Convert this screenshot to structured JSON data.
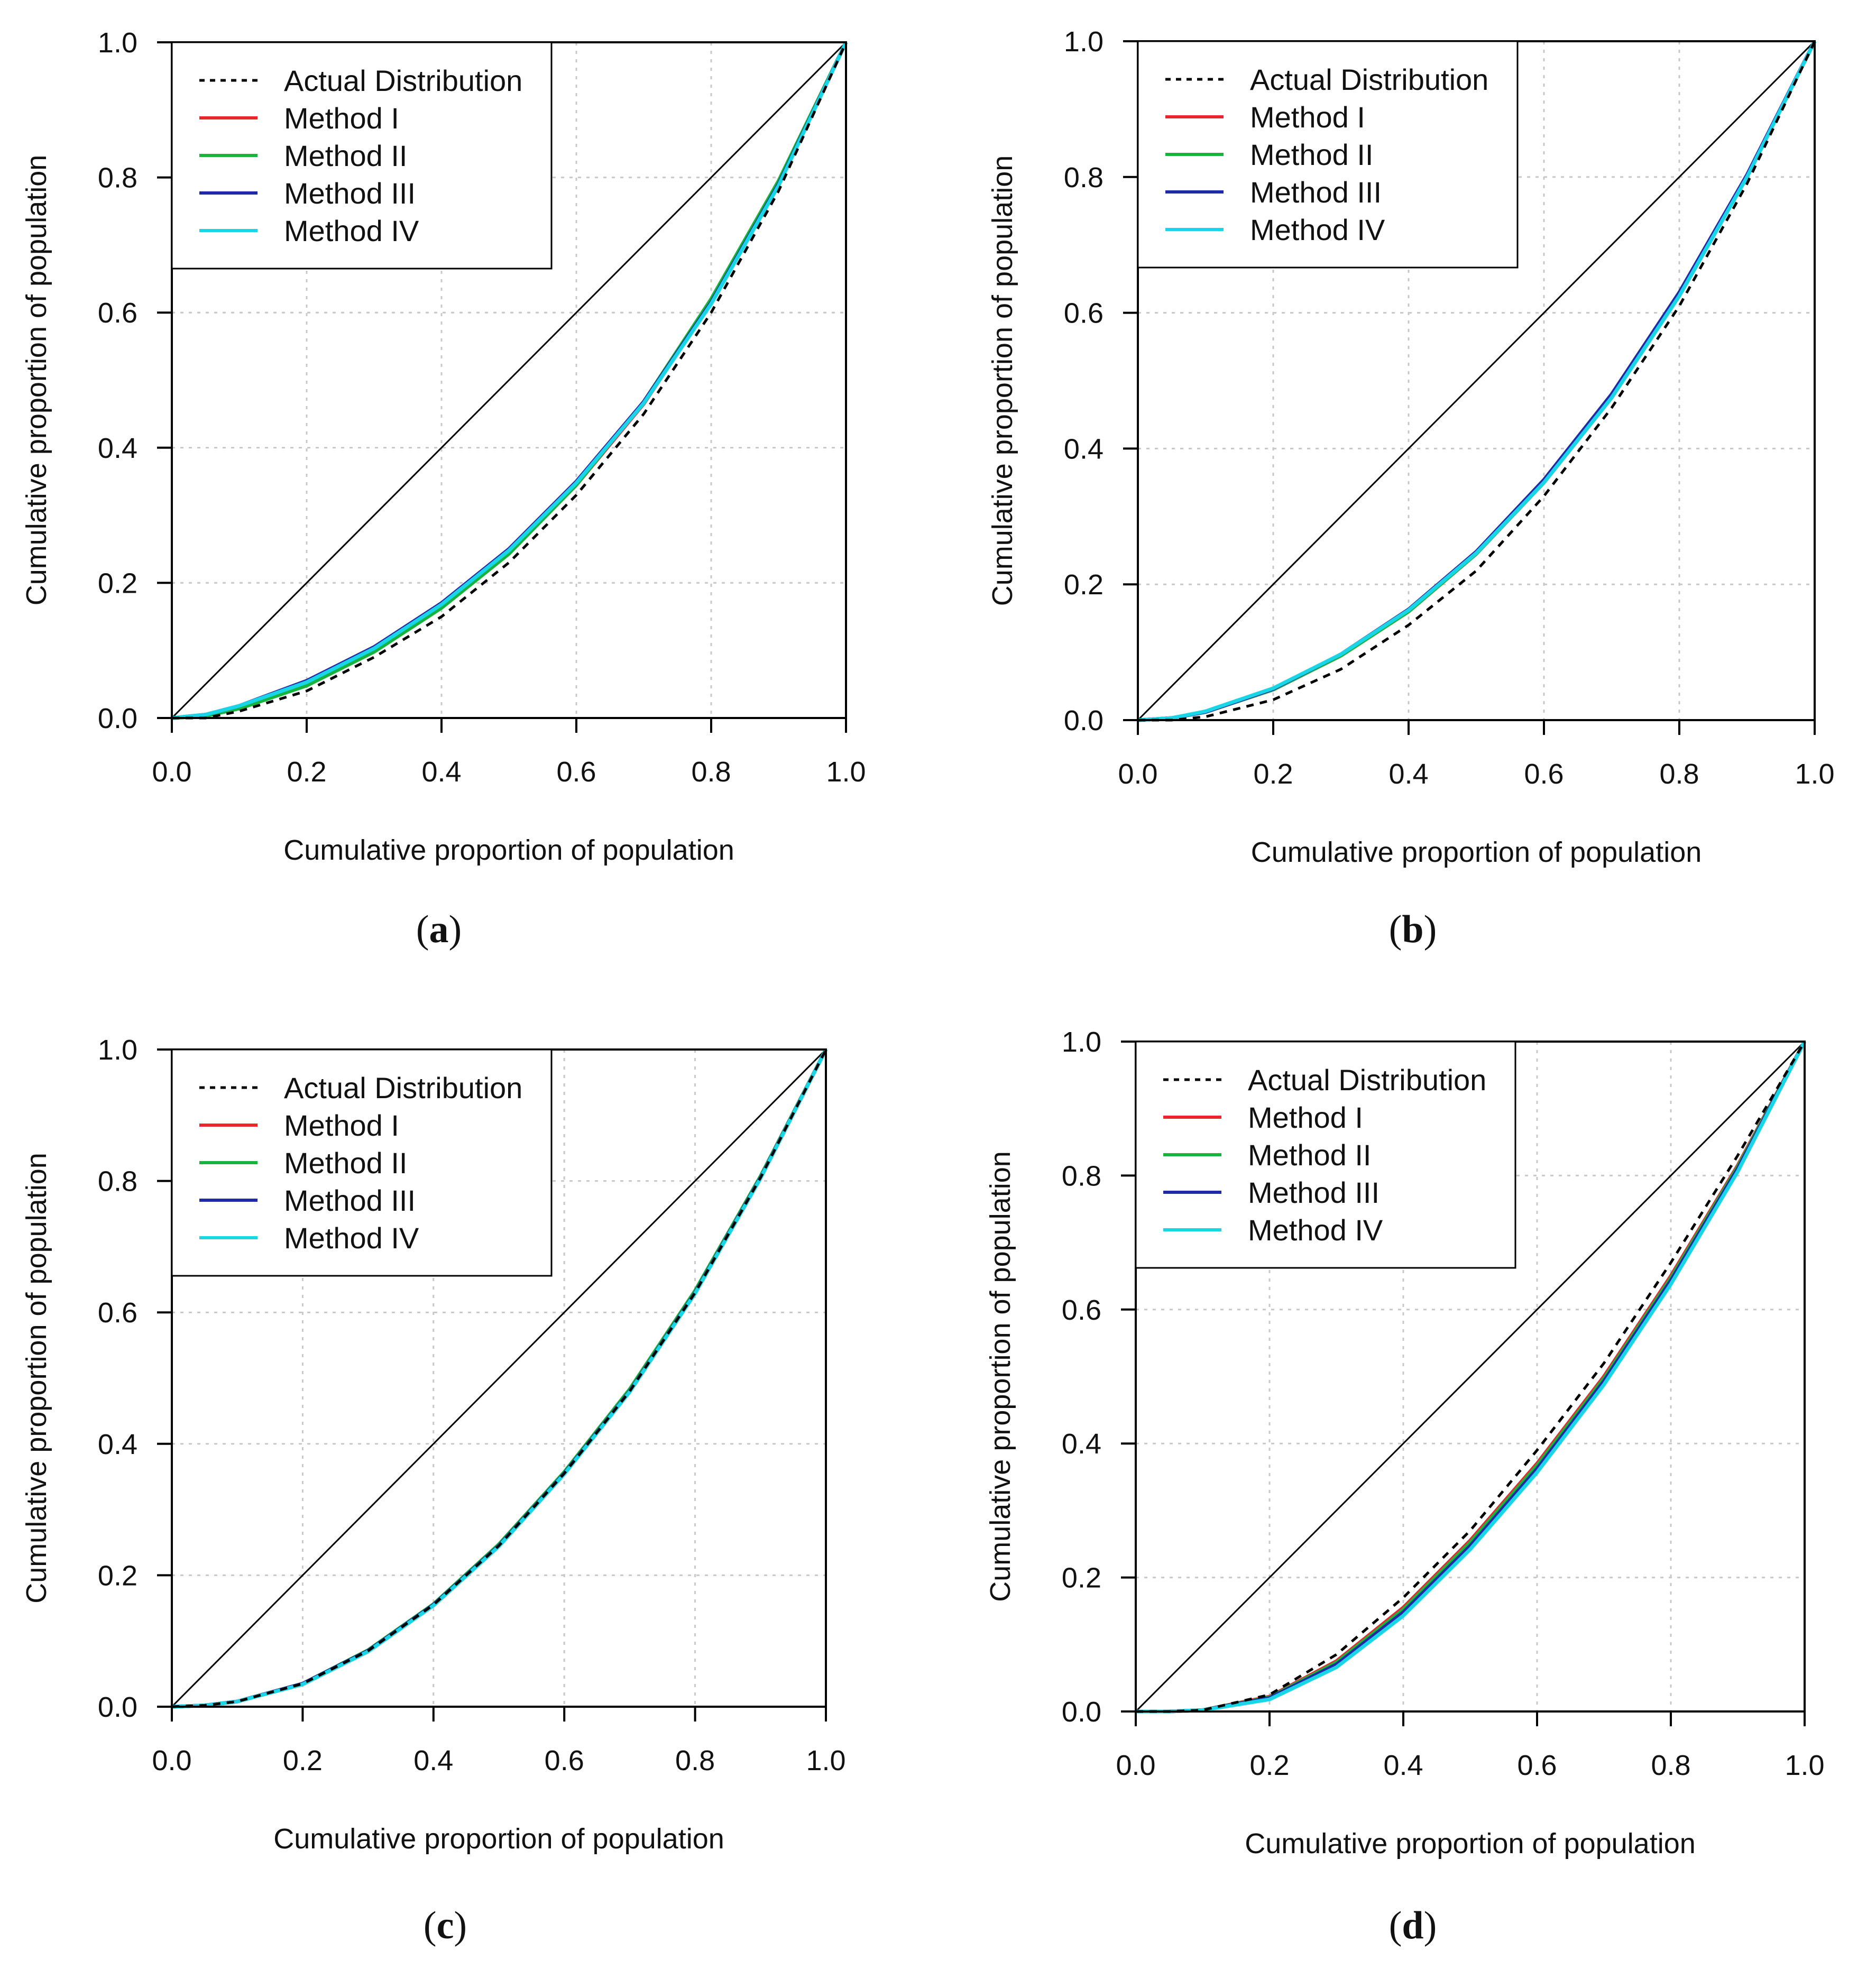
{
  "figure": {
    "panels": [
      "a",
      "b",
      "c",
      "d"
    ]
  },
  "chart_data": [
    {
      "panel": "a",
      "caption": "(a)",
      "type": "line",
      "xlabel": "Cumulative proportion of population",
      "ylabel": "Cumulative proportion of population",
      "xlim": [
        0,
        1
      ],
      "ylim": [
        0,
        1
      ],
      "xticks": [
        "0.0",
        "0.2",
        "0.4",
        "0.6",
        "0.8",
        "1.0"
      ],
      "yticks": [
        "0.0",
        "0.2",
        "0.4",
        "0.6",
        "0.8",
        "1.0"
      ],
      "grid": true,
      "legend_position": "top-left",
      "equality_line": {
        "x": [
          0,
          1
        ],
        "y": [
          0,
          1
        ],
        "color": "#000000"
      },
      "series": [
        {
          "name": "Actual Distribution",
          "style": "dashed",
          "color": "#000000",
          "x": [
            0,
            0.05,
            0.1,
            0.2,
            0.3,
            0.4,
            0.5,
            0.6,
            0.7,
            0.8,
            0.9,
            1.0
          ],
          "y": [
            0,
            0,
            0.01,
            0.04,
            0.09,
            0.15,
            0.23,
            0.33,
            0.45,
            0.6,
            0.78,
            1.0
          ]
        },
        {
          "name": "Method I",
          "style": "solid",
          "color": "#e8262b",
          "x": [
            0,
            0.05,
            0.1,
            0.2,
            0.3,
            0.4,
            0.5,
            0.6,
            0.7,
            0.8,
            0.9,
            1.0
          ],
          "y": [
            0,
            0.003,
            0.015,
            0.05,
            0.1,
            0.165,
            0.245,
            0.345,
            0.465,
            0.615,
            0.79,
            1.0
          ]
        },
        {
          "name": "Method II",
          "style": "solid",
          "color": "#17b33d",
          "x": [
            0,
            0.05,
            0.1,
            0.2,
            0.3,
            0.4,
            0.5,
            0.6,
            0.7,
            0.8,
            0.9,
            1.0
          ],
          "y": [
            0,
            0.003,
            0.014,
            0.048,
            0.098,
            0.163,
            0.243,
            0.345,
            0.468,
            0.62,
            0.795,
            1.0
          ]
        },
        {
          "name": "Method III",
          "style": "solid",
          "color": "#1f2aa6",
          "x": [
            0,
            0.05,
            0.1,
            0.2,
            0.3,
            0.4,
            0.5,
            0.6,
            0.7,
            0.8,
            0.9,
            1.0
          ],
          "y": [
            0,
            0.005,
            0.018,
            0.055,
            0.105,
            0.17,
            0.25,
            0.35,
            0.468,
            0.615,
            0.79,
            1.0
          ]
        },
        {
          "name": "Method IV",
          "style": "solid",
          "color": "#19d6e6",
          "x": [
            0,
            0.05,
            0.1,
            0.2,
            0.3,
            0.4,
            0.5,
            0.6,
            0.7,
            0.8,
            0.9,
            1.0
          ],
          "y": [
            0,
            0.005,
            0.018,
            0.053,
            0.103,
            0.168,
            0.248,
            0.348,
            0.466,
            0.613,
            0.788,
            1.0
          ]
        }
      ]
    },
    {
      "panel": "b",
      "caption": "(b)",
      "type": "line",
      "xlabel": "Cumulative proportion of population",
      "ylabel": "Cumulative proportion of population",
      "xlim": [
        0,
        1
      ],
      "ylim": [
        0,
        1
      ],
      "xticks": [
        "0.0",
        "0.2",
        "0.4",
        "0.6",
        "0.8",
        "1.0"
      ],
      "yticks": [
        "0.0",
        "0.2",
        "0.4",
        "0.6",
        "0.8",
        "1.0"
      ],
      "grid": true,
      "legend_position": "top-left",
      "equality_line": {
        "x": [
          0,
          1
        ],
        "y": [
          0,
          1
        ],
        "color": "#000000"
      },
      "series": [
        {
          "name": "Actual Distribution",
          "style": "dashed",
          "color": "#000000",
          "x": [
            0,
            0.05,
            0.1,
            0.2,
            0.3,
            0.4,
            0.5,
            0.6,
            0.7,
            0.8,
            0.9,
            1.0
          ],
          "y": [
            0,
            0,
            0.005,
            0.03,
            0.075,
            0.14,
            0.22,
            0.33,
            0.46,
            0.61,
            0.79,
            1.0
          ]
        },
        {
          "name": "Method I",
          "style": "solid",
          "color": "#e8262b",
          "x": [
            0,
            0.05,
            0.1,
            0.2,
            0.3,
            0.4,
            0.5,
            0.6,
            0.7,
            0.8,
            0.9,
            1.0
          ],
          "y": [
            0,
            0.003,
            0.012,
            0.045,
            0.095,
            0.16,
            0.245,
            0.35,
            0.475,
            0.625,
            0.8,
            1.0
          ]
        },
        {
          "name": "Method II",
          "style": "solid",
          "color": "#17b33d",
          "x": [
            0,
            0.05,
            0.1,
            0.2,
            0.3,
            0.4,
            0.5,
            0.6,
            0.7,
            0.8,
            0.9,
            1.0
          ],
          "y": [
            0,
            0.003,
            0.012,
            0.045,
            0.095,
            0.16,
            0.245,
            0.35,
            0.475,
            0.625,
            0.8,
            1.0
          ]
        },
        {
          "name": "Method III",
          "style": "solid",
          "color": "#1f2aa6",
          "x": [
            0,
            0.05,
            0.1,
            0.2,
            0.3,
            0.4,
            0.5,
            0.6,
            0.7,
            0.8,
            0.9,
            1.0
          ],
          "y": [
            0,
            0.003,
            0.012,
            0.046,
            0.097,
            0.163,
            0.248,
            0.354,
            0.48,
            0.63,
            0.803,
            1.0
          ]
        },
        {
          "name": "Method IV",
          "style": "solid",
          "color": "#19d6e6",
          "x": [
            0,
            0.05,
            0.1,
            0.2,
            0.3,
            0.4,
            0.5,
            0.6,
            0.7,
            0.8,
            0.9,
            1.0
          ],
          "y": [
            0,
            0.003,
            0.013,
            0.047,
            0.097,
            0.162,
            0.246,
            0.35,
            0.475,
            0.625,
            0.8,
            1.0
          ]
        }
      ]
    },
    {
      "panel": "c",
      "caption": "(c)",
      "type": "line",
      "xlabel": "Cumulative proportion of population",
      "ylabel": "Cumulative proportion of population",
      "xlim": [
        0,
        1
      ],
      "ylim": [
        0,
        1
      ],
      "xticks": [
        "0.0",
        "0.2",
        "0.4",
        "0.6",
        "0.8",
        "1.0"
      ],
      "yticks": [
        "0.0",
        "0.2",
        "0.4",
        "0.6",
        "0.8",
        "1.0"
      ],
      "grid": true,
      "legend_position": "top-left",
      "equality_line": {
        "x": [
          0,
          1
        ],
        "y": [
          0,
          1
        ],
        "color": "#000000"
      },
      "series": [
        {
          "name": "Actual Distribution",
          "style": "dashed",
          "color": "#000000",
          "x": [
            0,
            0.05,
            0.1,
            0.2,
            0.3,
            0.4,
            0.5,
            0.6,
            0.7,
            0.8,
            0.9,
            1.0
          ],
          "y": [
            0,
            0.002,
            0.008,
            0.035,
            0.085,
            0.155,
            0.245,
            0.355,
            0.48,
            0.63,
            0.805,
            1.0
          ]
        },
        {
          "name": "Method I",
          "style": "solid",
          "color": "#e8262b",
          "x": [
            0,
            0.05,
            0.1,
            0.2,
            0.3,
            0.4,
            0.5,
            0.6,
            0.7,
            0.8,
            0.9,
            1.0
          ],
          "y": [
            0,
            0.002,
            0.008,
            0.035,
            0.085,
            0.155,
            0.245,
            0.355,
            0.48,
            0.63,
            0.805,
            1.0
          ]
        },
        {
          "name": "Method II",
          "style": "solid",
          "color": "#17b33d",
          "x": [
            0,
            0.05,
            0.1,
            0.2,
            0.3,
            0.4,
            0.5,
            0.6,
            0.7,
            0.8,
            0.9,
            1.0
          ],
          "y": [
            0,
            0.002,
            0.008,
            0.035,
            0.086,
            0.156,
            0.247,
            0.357,
            0.483,
            0.633,
            0.807,
            1.0
          ]
        },
        {
          "name": "Method III",
          "style": "solid",
          "color": "#1f2aa6",
          "x": [
            0,
            0.05,
            0.1,
            0.2,
            0.3,
            0.4,
            0.5,
            0.6,
            0.7,
            0.8,
            0.9,
            1.0
          ],
          "y": [
            0,
            0.002,
            0.008,
            0.035,
            0.085,
            0.155,
            0.245,
            0.355,
            0.48,
            0.63,
            0.805,
            1.0
          ]
        },
        {
          "name": "Method IV",
          "style": "solid",
          "color": "#19d6e6",
          "x": [
            0,
            0.05,
            0.1,
            0.2,
            0.3,
            0.4,
            0.5,
            0.6,
            0.7,
            0.8,
            0.9,
            1.0
          ],
          "y": [
            0,
            0.002,
            0.008,
            0.034,
            0.084,
            0.154,
            0.244,
            0.354,
            0.479,
            0.629,
            0.804,
            1.0
          ]
        }
      ]
    },
    {
      "panel": "d",
      "caption": "(d)",
      "type": "line",
      "xlabel": "Cumulative proportion of population",
      "ylabel": "Cumulative proportion of population",
      "xlim": [
        0,
        1
      ],
      "ylim": [
        0,
        1
      ],
      "xticks": [
        "0.0",
        "0.2",
        "0.4",
        "0.6",
        "0.8",
        "1.0"
      ],
      "yticks": [
        "0.0",
        "0.2",
        "0.4",
        "0.6",
        "0.8",
        "1.0"
      ],
      "grid": true,
      "legend_position": "top-left",
      "equality_line": {
        "x": [
          0,
          1
        ],
        "y": [
          0,
          1
        ],
        "color": "#000000"
      },
      "series": [
        {
          "name": "Actual Distribution",
          "style": "dashed",
          "color": "#000000",
          "x": [
            0,
            0.05,
            0.1,
            0.2,
            0.3,
            0.4,
            0.5,
            0.6,
            0.7,
            0.8,
            0.9,
            1.0
          ],
          "y": [
            0,
            0,
            0.002,
            0.025,
            0.085,
            0.17,
            0.27,
            0.39,
            0.52,
            0.67,
            0.83,
            1.0
          ]
        },
        {
          "name": "Method I",
          "style": "solid",
          "color": "#e8262b",
          "x": [
            0,
            0.05,
            0.1,
            0.2,
            0.3,
            0.4,
            0.5,
            0.6,
            0.7,
            0.8,
            0.9,
            1.0
          ],
          "y": [
            0,
            0,
            0.002,
            0.022,
            0.075,
            0.155,
            0.255,
            0.37,
            0.5,
            0.65,
            0.815,
            1.0
          ]
        },
        {
          "name": "Method II",
          "style": "solid",
          "color": "#17b33d",
          "x": [
            0,
            0.05,
            0.1,
            0.2,
            0.3,
            0.4,
            0.5,
            0.6,
            0.7,
            0.8,
            0.9,
            1.0
          ],
          "y": [
            0,
            0,
            0.002,
            0.021,
            0.073,
            0.152,
            0.252,
            0.367,
            0.497,
            0.647,
            0.813,
            1.0
          ]
        },
        {
          "name": "Method III",
          "style": "solid",
          "color": "#1f2aa6",
          "x": [
            0,
            0.05,
            0.1,
            0.2,
            0.3,
            0.4,
            0.5,
            0.6,
            0.7,
            0.8,
            0.9,
            1.0
          ],
          "y": [
            0,
            0,
            0.002,
            0.02,
            0.07,
            0.148,
            0.247,
            0.362,
            0.493,
            0.643,
            0.81,
            1.0
          ]
        },
        {
          "name": "Method IV",
          "style": "solid",
          "color": "#19d6e6",
          "x": [
            0,
            0.05,
            0.1,
            0.2,
            0.3,
            0.4,
            0.5,
            0.6,
            0.7,
            0.8,
            0.9,
            1.0
          ],
          "y": [
            0,
            0,
            0.002,
            0.018,
            0.066,
            0.143,
            0.242,
            0.357,
            0.488,
            0.638,
            0.806,
            1.0
          ]
        }
      ]
    }
  ]
}
